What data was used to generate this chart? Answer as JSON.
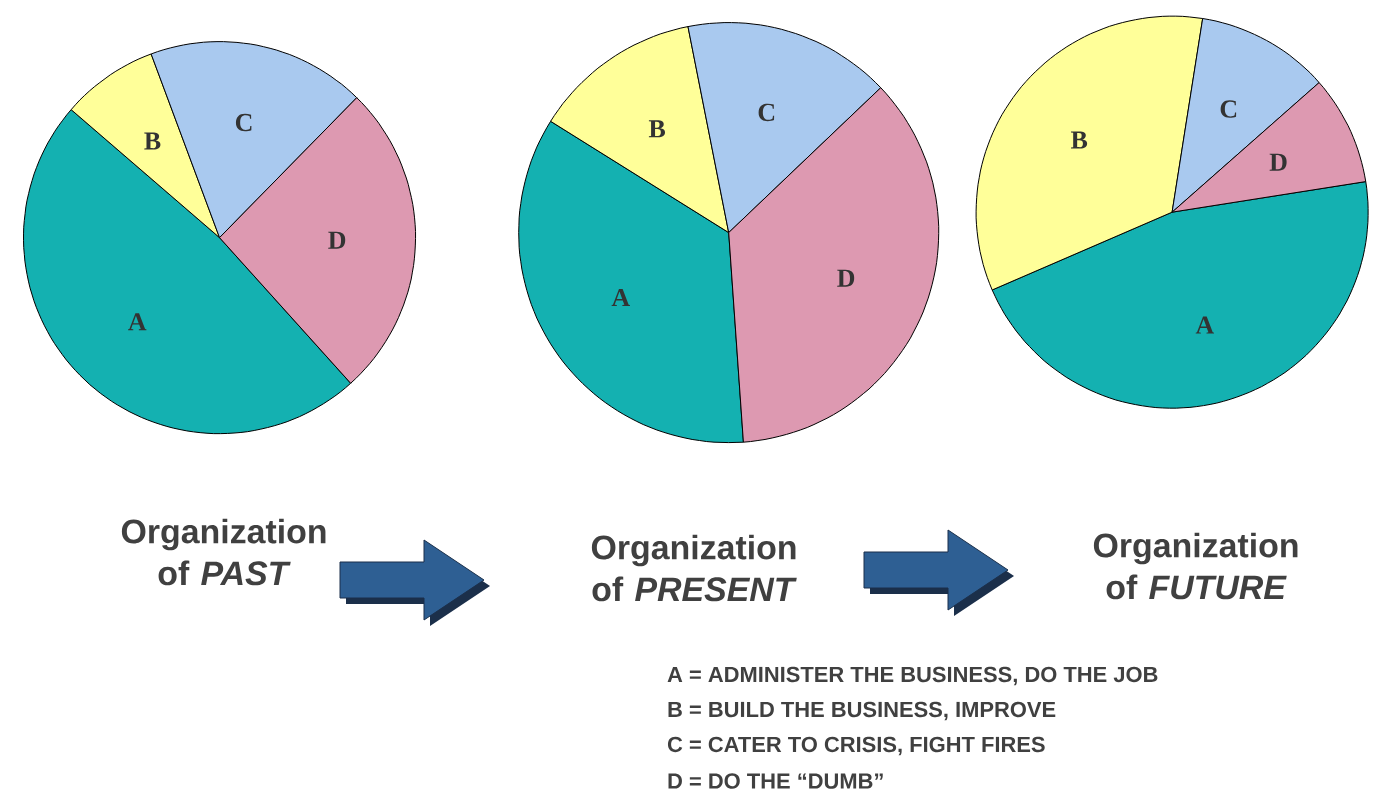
{
  "chart_data": [
    {
      "type": "pie",
      "title": "Organization of *PAST*",
      "categories": [
        "A",
        "B",
        "C",
        "D"
      ],
      "values": [
        48,
        8,
        18,
        26
      ],
      "colors": [
        "#14b1b1",
        "#ffff99",
        "#a9c9ef",
        "#dd99b1"
      ]
    },
    {
      "type": "pie",
      "title": "Organization of *PRESENT*",
      "categories": [
        "A",
        "B",
        "C",
        "D"
      ],
      "values": [
        35,
        13,
        16,
        36
      ],
      "colors": [
        "#14b1b1",
        "#ffff99",
        "#a9c9ef",
        "#dd99b1"
      ],
      "annotations": [
        "A = ADMINISTER THE BUSINESS, DO THE JOB",
        "B = BUILD THE BUSINESS, IMPROVE",
        "C = CATER TO CRISIS, FIGHT FIRES",
        "D = DO THE “DUMB”"
      ]
    },
    {
      "type": "pie",
      "title": "Organization of *FUTURE*",
      "categories": [
        "A",
        "B",
        "C",
        "D"
      ],
      "values": [
        46,
        34,
        11,
        9
      ],
      "colors": [
        "#14b1b1",
        "#ffff99",
        "#a9c9ef",
        "#dd99b1"
      ]
    }
  ]
}
